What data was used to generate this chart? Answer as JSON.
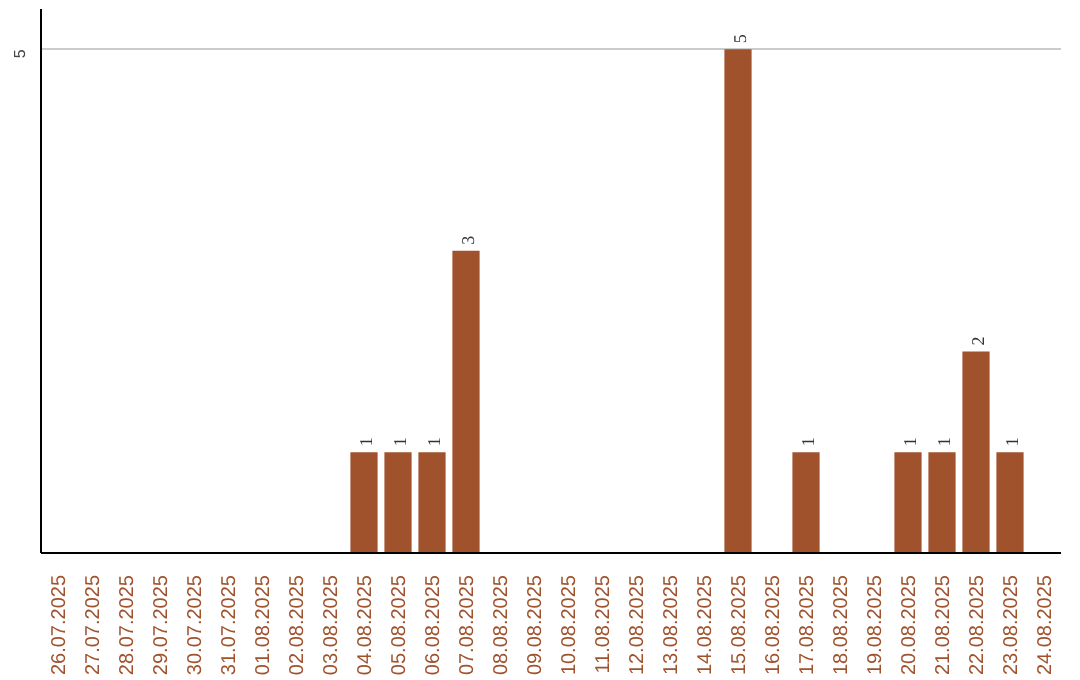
{
  "chart_data": {
    "type": "bar",
    "categories": [
      "26.07.2025",
      "27.07.2025",
      "28.07.2025",
      "29.07.2025",
      "30.07.2025",
      "31.07.2025",
      "01.08.2025",
      "02.08.2025",
      "03.08.2025",
      "04.08.2025",
      "05.08.2025",
      "06.08.2025",
      "07.08.2025",
      "08.08.2025",
      "09.08.2025",
      "10.08.2025",
      "11.08.2025",
      "12.08.2025",
      "13.08.2025",
      "14.08.2025",
      "15.08.2025",
      "16.08.2025",
      "17.08.2025",
      "18.08.2025",
      "19.08.2025",
      "20.08.2025",
      "21.08.2025",
      "22.08.2025",
      "23.08.2025",
      "24.08.2025"
    ],
    "values": [
      null,
      null,
      null,
      null,
      null,
      null,
      null,
      null,
      null,
      1,
      1,
      1,
      3,
      null,
      null,
      null,
      null,
      null,
      null,
      null,
      5,
      null,
      1,
      null,
      null,
      1,
      1,
      2,
      1,
      null
    ],
    "color": "#a0522d",
    "ylim": [
      0,
      5.4
    ],
    "yticks": [
      5
    ],
    "grid": "y",
    "data_labels": true
  }
}
